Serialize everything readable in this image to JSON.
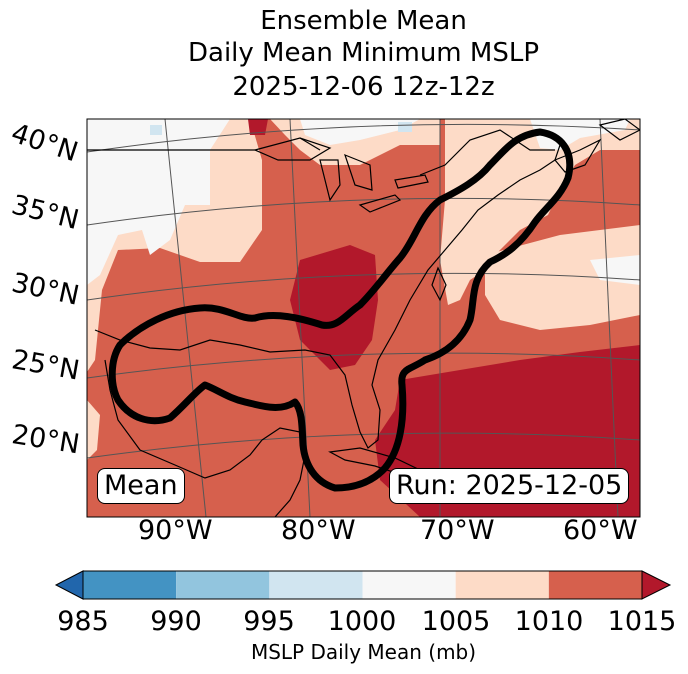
{
  "title": {
    "line1": "Ensemble Mean",
    "line2": "Daily Mean Minimum MSLP",
    "line3": "2025-12-06 12z-12z"
  },
  "map": {
    "lat_labels": [
      "40°N",
      "35°N",
      "30°N",
      "25°N",
      "20°N"
    ],
    "lon_labels": [
      "90°W",
      "80°W",
      "70°W",
      "60°W"
    ],
    "mean_box": "Mean",
    "run_box": "Run: 2025-12-05",
    "field_colors": {
      "lt1000": "#f7f7f7",
      "1000_1005": "#fddbc7",
      "1005_1010": "#d6604d",
      "1010_1015": "#d6604d",
      "gt1015": "#b2182b",
      "low": "#d1e5f0"
    },
    "outline_color": "#000000"
  },
  "colorbar": {
    "bins": [
      {
        "from": 985,
        "to": 990,
        "color": "#4393c3"
      },
      {
        "from": 990,
        "to": 995,
        "color": "#92c5de"
      },
      {
        "from": 995,
        "to": 1000,
        "color": "#d1e5f0"
      },
      {
        "from": 1000,
        "to": 1005,
        "color": "#f7f7f7"
      },
      {
        "from": 1005,
        "to": 1010,
        "color": "#fddbc7"
      },
      {
        "from": 1010,
        "to": 1015,
        "color": "#d6604d"
      }
    ],
    "under_color": "#2166ac",
    "over_color": "#b2182b",
    "tick_labels": [
      "985",
      "990",
      "995",
      "1000",
      "1005",
      "1010",
      "1015"
    ],
    "label": "MSLP Daily Mean (mb)"
  }
}
